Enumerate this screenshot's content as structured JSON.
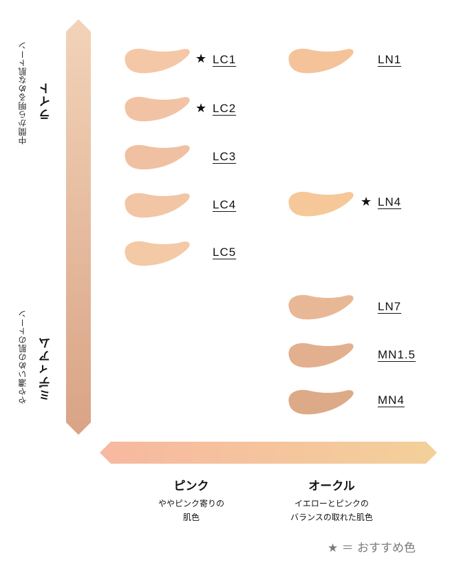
{
  "vertical_axis": {
    "top_subtitle": "中間から明るめな肌トーン",
    "top_title": "ライト",
    "bottom_subtitle": "やや濃いめの肌のトーン",
    "bottom_title": "ミディアム",
    "gradient_colors": [
      "#f2d3b8",
      "#d9a386"
    ]
  },
  "horizontal_axis": {
    "gradient_colors": [
      "#f7b8a0",
      "#f3d09a"
    ],
    "left": {
      "title": "ピンク",
      "desc_line1": "ややピンク寄りの",
      "desc_line2": "肌色"
    },
    "right": {
      "title": "オークル",
      "desc_line1": "イエローとピンクの",
      "desc_line2": "バランスの取れた肌色"
    }
  },
  "shades": [
    {
      "name": "LC1",
      "recommended": true,
      "star": "★",
      "color": "#f4c7a6"
    },
    {
      "name": "LC2",
      "recommended": true,
      "star": "★",
      "color": "#f1c3a4"
    },
    {
      "name": "LC3",
      "recommended": false,
      "star": "",
      "color": "#f0c0a2"
    },
    {
      "name": "LC4",
      "recommended": false,
      "star": "",
      "color": "#f2c5a4"
    },
    {
      "name": "LC5",
      "recommended": false,
      "star": "",
      "color": "#f3c9a6"
    },
    {
      "name": "LN1",
      "recommended": false,
      "star": "",
      "color": "#f4c39a"
    },
    {
      "name": "LN4",
      "recommended": true,
      "star": "★",
      "color": "#f6c899"
    },
    {
      "name": "LN7",
      "recommended": false,
      "star": "",
      "color": "#e8b896"
    },
    {
      "name": "MN1.5",
      "recommended": false,
      "star": "",
      "color": "#e2b08f"
    },
    {
      "name": "MN4",
      "recommended": false,
      "star": "",
      "color": "#ddaa88"
    }
  ],
  "legend": {
    "text": "★ ＝ おすすめ色"
  }
}
